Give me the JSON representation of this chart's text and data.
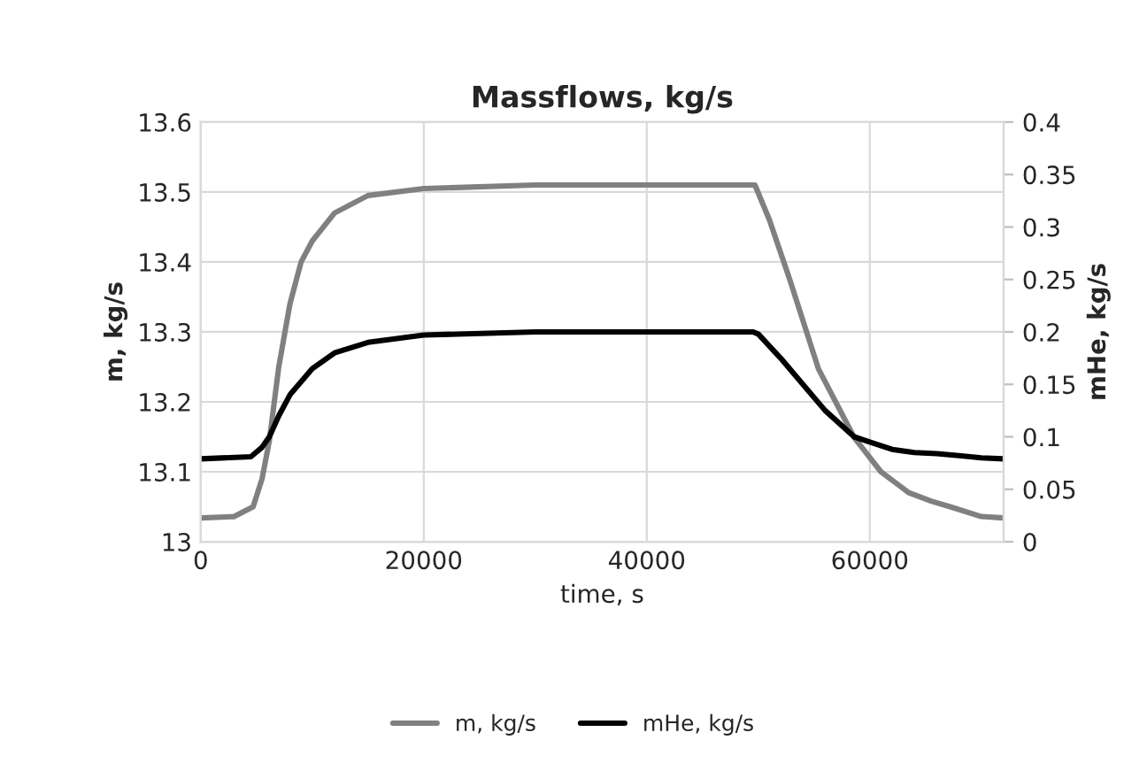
{
  "chart_data": {
    "type": "line",
    "title": "Massflows, kg/s",
    "xlabel": "time, s",
    "ylabel": "m, kg/s",
    "y2label": "mHe, kg/s",
    "series": [
      {
        "name": "m, kg/s",
        "color": "#808080",
        "x": [
          0,
          3000,
          4700,
          5500,
          6150,
          7000,
          8000,
          9000,
          10000,
          12000,
          15000,
          20000,
          30000,
          49700,
          51000,
          52800,
          55400,
          58600,
          61000,
          63500,
          65500,
          67400,
          70000,
          72000
        ],
        "values": [
          13.034,
          13.036,
          13.05,
          13.09,
          13.144,
          13.25,
          13.34,
          13.4,
          13.43,
          13.47,
          13.495,
          13.505,
          13.51,
          13.51,
          13.46,
          13.376,
          13.247,
          13.149,
          13.1,
          13.07,
          13.058,
          13.049,
          13.036,
          13.034
        ]
      },
      {
        "name": "mHe, kg/s",
        "color": "#000000",
        "axis": "y2",
        "x": [
          0,
          4500,
          5500,
          6150,
          7000,
          8000,
          10000,
          12000,
          15000,
          20000,
          30000,
          49500,
          50000,
          52000,
          54000,
          56000,
          58600,
          60000,
          62000,
          64000,
          66000,
          68000,
          70000,
          72000
        ],
        "values": [
          0.079,
          0.081,
          0.09,
          0.1,
          0.12,
          0.14,
          0.165,
          0.18,
          0.19,
          0.197,
          0.2,
          0.2,
          0.198,
          0.175,
          0.15,
          0.125,
          0.1,
          0.095,
          0.088,
          0.085,
          0.084,
          0.082,
          0.08,
          0.079
        ]
      }
    ],
    "xlim": [
      0,
      72000
    ],
    "xticks": [
      0,
      20000,
      40000,
      60000
    ],
    "ylim": [
      13,
      13.6
    ],
    "yticks": [
      13,
      13.1,
      13.2,
      13.3,
      13.4,
      13.5,
      13.6
    ],
    "y2lim": [
      0,
      0.4
    ],
    "y2ticks": [
      0,
      0.05,
      0.1,
      0.15,
      0.2,
      0.25,
      0.3,
      0.35,
      0.4
    ],
    "grid": true,
    "legend": "bottom",
    "marker": "none",
    "line_style": "solid"
  }
}
